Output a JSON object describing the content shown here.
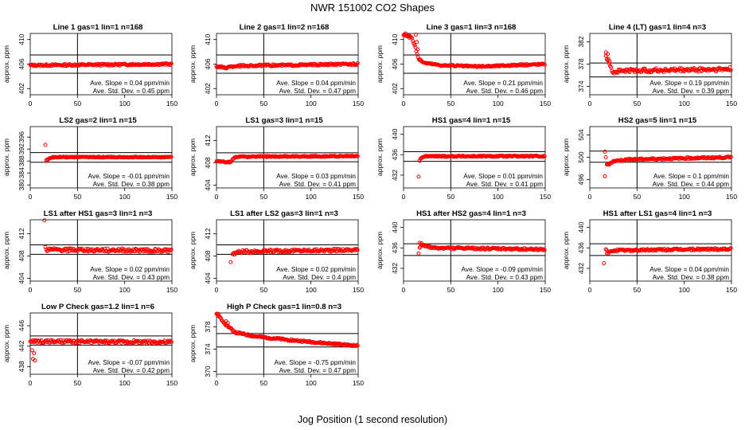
{
  "figure": {
    "title": "NWR  151002  CO2 Shapes",
    "xlabel": "Jog Position (1 second resolution)"
  },
  "chart_data": [
    {
      "type": "scatter",
      "title": "Line 1 gas=1 lin=1 n=168",
      "ylabel": "approx. ppm",
      "xlim": [
        0,
        150
      ],
      "ylim": [
        401,
        411
      ],
      "yticks": [
        402,
        406,
        410
      ],
      "xticks": [
        0,
        50,
        100,
        150
      ],
      "hlines": [
        407.5,
        404.5
      ],
      "vline": 50,
      "x_start": 0,
      "x_end": 150,
      "profile": [
        [
          0,
          405.8
        ],
        [
          150,
          406.0
        ]
      ],
      "noise": 0.15,
      "annotations": [
        "Ave. Slope =  0.04  ppm/min",
        "Ave. Std. Dev. =  0.45  ppm"
      ]
    },
    {
      "type": "scatter",
      "title": "Line 2 gas=1 lin=2 n=168",
      "ylabel": "approx. ppm",
      "xlim": [
        0,
        150
      ],
      "ylim": [
        401,
        411
      ],
      "yticks": [
        402,
        406,
        410
      ],
      "xticks": [
        0,
        50,
        100,
        150
      ],
      "hlines": [
        407.5,
        404.5
      ],
      "vline": 50,
      "x_start": 0,
      "x_end": 150,
      "profile": [
        [
          0,
          405.6
        ],
        [
          10,
          405.4
        ],
        [
          20,
          405.7
        ],
        [
          150,
          406.0
        ]
      ],
      "noise": 0.15,
      "annotations": [
        "Ave. Slope =  0.04  ppm/min",
        "Ave. Std. Dev. =  0.47  ppm"
      ]
    },
    {
      "type": "scatter",
      "title": "Line 3 gas=1 lin=3 n=168",
      "ylabel": "approx. ppm",
      "xlim": [
        0,
        150
      ],
      "ylim": [
        401,
        411
      ],
      "yticks": [
        402,
        406,
        410
      ],
      "xticks": [
        0,
        50,
        100,
        150
      ],
      "hlines": [
        407.5,
        404.5
      ],
      "vline": 50,
      "x_start": 0,
      "x_end": 150,
      "profile": [
        [
          0,
          410.8
        ],
        [
          8,
          410.5
        ],
        [
          12,
          409.0
        ],
        [
          16,
          406.8
        ],
        [
          22,
          406.2
        ],
        [
          40,
          405.8
        ],
        [
          80,
          405.6
        ],
        [
          150,
          406.0
        ]
      ],
      "noise": 0.12,
      "outliers": [
        [
          2,
          411.0
        ],
        [
          4,
          410.6
        ],
        [
          6,
          410.3
        ],
        [
          13,
          410.8
        ],
        [
          14,
          409.6
        ],
        [
          15,
          408.4
        ]
      ],
      "annotations": [
        "Ave. Slope =  0.21  ppm/min",
        "Ave. Std. Dev. =  0.46  ppm"
      ]
    },
    {
      "type": "scatter",
      "title": "Line 4 (LT) gas=1 lin=4 n=3",
      "ylabel": "approx. ppm",
      "xlim": [
        0,
        150
      ],
      "ylim": [
        372.5,
        383.5
      ],
      "yticks": [
        374,
        378,
        382
      ],
      "xticks": [
        0,
        50,
        100,
        150
      ],
      "hlines": [
        378.2,
        375.7
      ],
      "vline": 50,
      "x_start": 17,
      "x_end": 150,
      "profile": [
        [
          17,
          379.2
        ],
        [
          20,
          378.6
        ],
        [
          25,
          376.4
        ],
        [
          30,
          376.8
        ],
        [
          150,
          377.1
        ]
      ],
      "noise": 0.35,
      "outliers": [
        [
          17,
          380.1
        ],
        [
          19,
          379.8
        ],
        [
          21,
          378.5
        ]
      ],
      "annotations": [
        "Ave. Slope =  0.19  ppm/min",
        "Ave. Std. Dev. =  0.39  ppm"
      ]
    },
    {
      "type": "scatter",
      "title": "LS2 gas=2 lin=1 n=15",
      "ylabel": "approx. ppm",
      "xlim": [
        0,
        150
      ],
      "ylim": [
        379,
        399.5
      ],
      "yticks": [
        380,
        384,
        388,
        392,
        396
      ],
      "xticks": [
        0,
        50,
        100,
        150
      ],
      "hlines": [
        390.8,
        387.6
      ],
      "vline": 50,
      "x_start": 17,
      "x_end": 150,
      "profile": [
        [
          17,
          388.2
        ],
        [
          22,
          389.2
        ],
        [
          30,
          389.3
        ],
        [
          150,
          389.3
        ]
      ],
      "noise": 0.15,
      "outliers": [
        [
          16,
          393.4
        ]
      ],
      "annotations": [
        "Ave. Slope =  -0.01  ppm/min",
        "Ave. Std. Dev. =  0.38  ppm"
      ]
    },
    {
      "type": "scatter",
      "title": "LS1 gas=3 lin=1 n=15",
      "ylabel": "approx. ppm",
      "xlim": [
        0,
        150
      ],
      "ylim": [
        403.5,
        414.5
      ],
      "yticks": [
        404,
        408,
        412
      ],
      "xticks": [
        0,
        50,
        100,
        150
      ],
      "hlines": [
        409.8,
        408.2
      ],
      "vline": 50,
      "x_start": 0,
      "x_end": 150,
      "profile": [
        [
          0,
          408.3
        ],
        [
          12,
          408.1
        ],
        [
          15,
          408.1
        ],
        [
          18,
          408.8
        ],
        [
          22,
          409.1
        ],
        [
          150,
          409.2
        ]
      ],
      "noise": 0.1,
      "annotations": [
        "Ave. Slope =  0.03  ppm/min",
        "Ave. Std. Dev. =  0.41  ppm"
      ]
    },
    {
      "type": "scatter",
      "title": "HS1 gas=4 lin=1 n=15",
      "ylabel": "approx. ppm",
      "xlim": [
        0,
        150
      ],
      "ylim": [
        429.5,
        441.5
      ],
      "yticks": [
        432,
        436,
        440
      ],
      "xticks": [
        0,
        50,
        100,
        150
      ],
      "hlines": [
        436.6,
        434.7
      ],
      "vline": 50,
      "x_start": 17,
      "x_end": 150,
      "profile": [
        [
          17,
          434.9
        ],
        [
          20,
          435.6
        ],
        [
          25,
          435.7
        ],
        [
          150,
          435.7
        ]
      ],
      "noise": 0.12,
      "outliers": [
        [
          16,
          431.7
        ]
      ],
      "annotations": [
        "Ave. Slope =  0.01  ppm/min",
        "Ave. Std. Dev. =  0.41  ppm"
      ]
    },
    {
      "type": "scatter",
      "title": "HS2 gas=5 lin=1 n=15",
      "ylabel": "approx. ppm",
      "xlim": [
        0,
        150
      ],
      "ylim": [
        494.5,
        505.5
      ],
      "yticks": [
        496,
        500,
        504
      ],
      "xticks": [
        0,
        50,
        100,
        150
      ],
      "hlines": [
        501.1,
        499.1
      ],
      "vline": 50,
      "x_start": 18,
      "x_end": 150,
      "profile": [
        [
          18,
          498.6
        ],
        [
          25,
          499.3
        ],
        [
          40,
          499.6
        ],
        [
          150,
          500.0
        ]
      ],
      "noise": 0.15,
      "outliers": [
        [
          16,
          501.0
        ],
        [
          17,
          500.0
        ],
        [
          16,
          496.6
        ]
      ],
      "annotations": [
        "Ave. Slope =  0.1  ppm/min",
        "Ave. Std. Dev. =  0.44  ppm"
      ]
    },
    {
      "type": "scatter",
      "title": "LS1 after HS1 gas=3 lin=1 n=3",
      "ylabel": "approx. ppm",
      "xlim": [
        0,
        150
      ],
      "ylim": [
        403.5,
        414.5
      ],
      "yticks": [
        404,
        408,
        412
      ],
      "xticks": [
        0,
        50,
        100,
        150
      ],
      "hlines": [
        410.0,
        408.3
      ],
      "vline": 50,
      "x_start": 17,
      "x_end": 150,
      "profile": [
        [
          17,
          409.1
        ],
        [
          150,
          409.0
        ]
      ],
      "noise": 0.3,
      "outliers": [
        [
          15,
          414.4
        ],
        [
          16,
          409.6
        ]
      ],
      "annotations": [
        "Ave. Slope =  0.02  ppm/min",
        "Ave. Std. Dev. =  0.43  ppm"
      ]
    },
    {
      "type": "scatter",
      "title": "LS1 after LS2 gas=3 lin=1 n=3",
      "ylabel": "approx. ppm",
      "xlim": [
        0,
        150
      ],
      "ylim": [
        403.5,
        414.5
      ],
      "yticks": [
        404,
        408,
        412
      ],
      "xticks": [
        0,
        50,
        100,
        150
      ],
      "hlines": [
        410.0,
        408.3
      ],
      "vline": 50,
      "x_start": 17,
      "x_end": 150,
      "profile": [
        [
          17,
          408.4
        ],
        [
          25,
          408.8
        ],
        [
          150,
          409.1
        ]
      ],
      "noise": 0.25,
      "outliers": [
        [
          15,
          406.9
        ]
      ],
      "annotations": [
        "Ave. Slope =  0.02  ppm/min",
        "Ave. Std. Dev. =  0.4  ppm"
      ]
    },
    {
      "type": "scatter",
      "title": "HS1 after HS2 gas=4 lin=1 n=3",
      "ylabel": "approx. ppm",
      "xlim": [
        0,
        150
      ],
      "ylim": [
        429.5,
        441.5
      ],
      "yticks": [
        432,
        436,
        440
      ],
      "xticks": [
        0,
        50,
        100,
        150
      ],
      "hlines": [
        436.8,
        434.5
      ],
      "vline": 50,
      "x_start": 17,
      "x_end": 150,
      "profile": [
        [
          17,
          436.2
        ],
        [
          20,
          436.6
        ],
        [
          30,
          436.0
        ],
        [
          150,
          435.7
        ]
      ],
      "noise": 0.2,
      "outliers": [
        [
          16,
          434.9
        ],
        [
          17,
          437.0
        ],
        [
          19,
          436.9
        ]
      ],
      "annotations": [
        "Ave. Slope =  -0.09  ppm/min",
        "Ave. Std. Dev. =  0.43  ppm"
      ]
    },
    {
      "type": "scatter",
      "title": "HS1 after LS1 gas=4 lin=1 n=3",
      "ylabel": "approx. ppm",
      "xlim": [
        0,
        150
      ],
      "ylim": [
        429.5,
        441.5
      ],
      "yticks": [
        432,
        436,
        440
      ],
      "xticks": [
        0,
        50,
        100,
        150
      ],
      "hlines": [
        436.8,
        434.5
      ],
      "vline": 50,
      "x_start": 17,
      "x_end": 150,
      "profile": [
        [
          17,
          435.6
        ],
        [
          20,
          435.0
        ],
        [
          25,
          435.5
        ],
        [
          150,
          435.8
        ]
      ],
      "noise": 0.2,
      "outliers": [
        [
          15,
          433.0
        ],
        [
          18,
          434.9
        ]
      ],
      "annotations": [
        "Ave. Slope =  0.04  ppm/min",
        "Ave. Std. Dev. =  0.38  ppm"
      ]
    },
    {
      "type": "scatter",
      "title": "Low P Check gas=1.2 lin=1 n=6",
      "ylabel": "approx. ppm",
      "xlim": [
        0,
        150
      ],
      "ylim": [
        436.5,
        448.5
      ],
      "yticks": [
        438,
        442,
        446
      ],
      "xticks": [
        0,
        50,
        100,
        150
      ],
      "hlines": [
        444.0,
        442.2
      ],
      "vline": 50,
      "x_start": 0,
      "x_end": 150,
      "profile": [
        [
          0,
          442.9
        ],
        [
          150,
          442.8
        ]
      ],
      "noise": 0.3,
      "outliers": [
        [
          3,
          439.5
        ],
        [
          5,
          439.2
        ],
        [
          2,
          441.2
        ],
        [
          4,
          440.6
        ]
      ],
      "annotations": [
        "Ave. Slope =  -0.07  ppm/min",
        "Ave. Std. Dev. =  0.42  ppm"
      ]
    },
    {
      "type": "scatter",
      "title": "High P Check gas=1 lin=0.8 n=3",
      "ylabel": "approx. ppm",
      "xlim": [
        0,
        150
      ],
      "ylim": [
        369.5,
        380.5
      ],
      "yticks": [
        370,
        374,
        378
      ],
      "xticks": [
        0,
        50,
        100,
        150
      ],
      "hlines": [
        376.8,
        374.4
      ],
      "vline": 50,
      "x_start": 0,
      "x_end": 150,
      "profile": [
        [
          0,
          380.4
        ],
        [
          10,
          378.4
        ],
        [
          20,
          377.0
        ],
        [
          40,
          376.3
        ],
        [
          80,
          375.6
        ],
        [
          120,
          375.0
        ],
        [
          150,
          374.6
        ]
      ],
      "noise": 0.15,
      "outliers": [
        [
          2,
          380.3
        ],
        [
          10,
          379.0
        ],
        [
          12,
          378.7
        ]
      ],
      "annotations": [
        "Ave. Slope =  -0.75  ppm/min",
        "Ave. Std. Dev. =  0.47  ppm"
      ]
    }
  ]
}
